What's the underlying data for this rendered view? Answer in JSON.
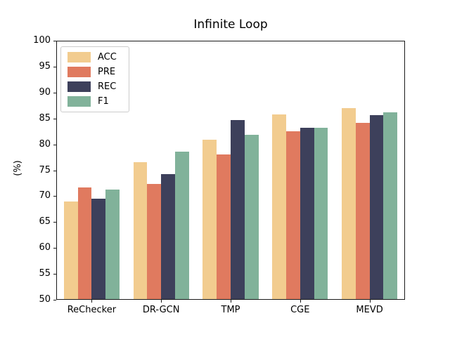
{
  "chart_data": {
    "type": "bar",
    "title": "Infinite Loop",
    "xlabel": "",
    "ylabel": "(%)",
    "ylim": [
      50,
      100
    ],
    "yticks": [
      50,
      55,
      60,
      65,
      70,
      75,
      80,
      85,
      90,
      95,
      100
    ],
    "grid": false,
    "legend_position": "upper-left",
    "categories": [
      "ReChecker",
      "DR-GCN",
      "TMP",
      "CGE",
      "MEVD"
    ],
    "series": [
      {
        "name": "ACC",
        "color": "#f2cc8f",
        "values": [
          68.9,
          76.6,
          80.9,
          85.9,
          87.0
        ]
      },
      {
        "name": "PRE",
        "color": "#e07a5f",
        "values": [
          71.7,
          72.3,
          78.0,
          82.6,
          84.2
        ]
      },
      {
        "name": "REC",
        "color": "#3d405b",
        "values": [
          69.5,
          74.2,
          84.8,
          83.2,
          85.7
        ]
      },
      {
        "name": "F1",
        "color": "#81b29a",
        "values": [
          71.2,
          78.6,
          81.9,
          83.3,
          86.2
        ]
      }
    ]
  }
}
